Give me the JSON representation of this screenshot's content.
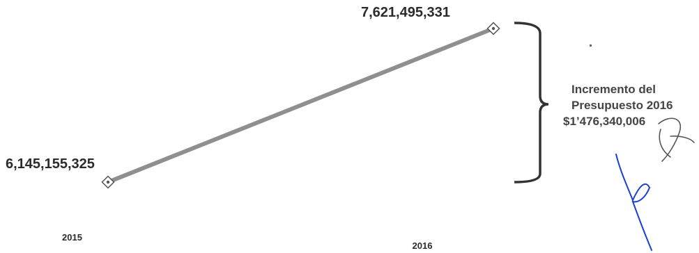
{
  "chart_data": {
    "type": "line",
    "categories": [
      "2015",
      "2016"
    ],
    "values": [
      6145155325,
      7621495331
    ],
    "value_labels": [
      "6,145,155,325",
      "7,621,495,331"
    ],
    "ylim": [
      6145155325,
      7621495331
    ],
    "grid": false,
    "legend": false,
    "annotation": {
      "lines": [
        "Incremento del",
        "Presupuesto 2016",
        "$1’476,340,006"
      ]
    }
  },
  "colors": {
    "line": "#8f8f8f",
    "text": "#2b2b2b",
    "bracket": "#333333",
    "ink_blue": "#1a3fd6",
    "ink_dark": "#555555"
  }
}
